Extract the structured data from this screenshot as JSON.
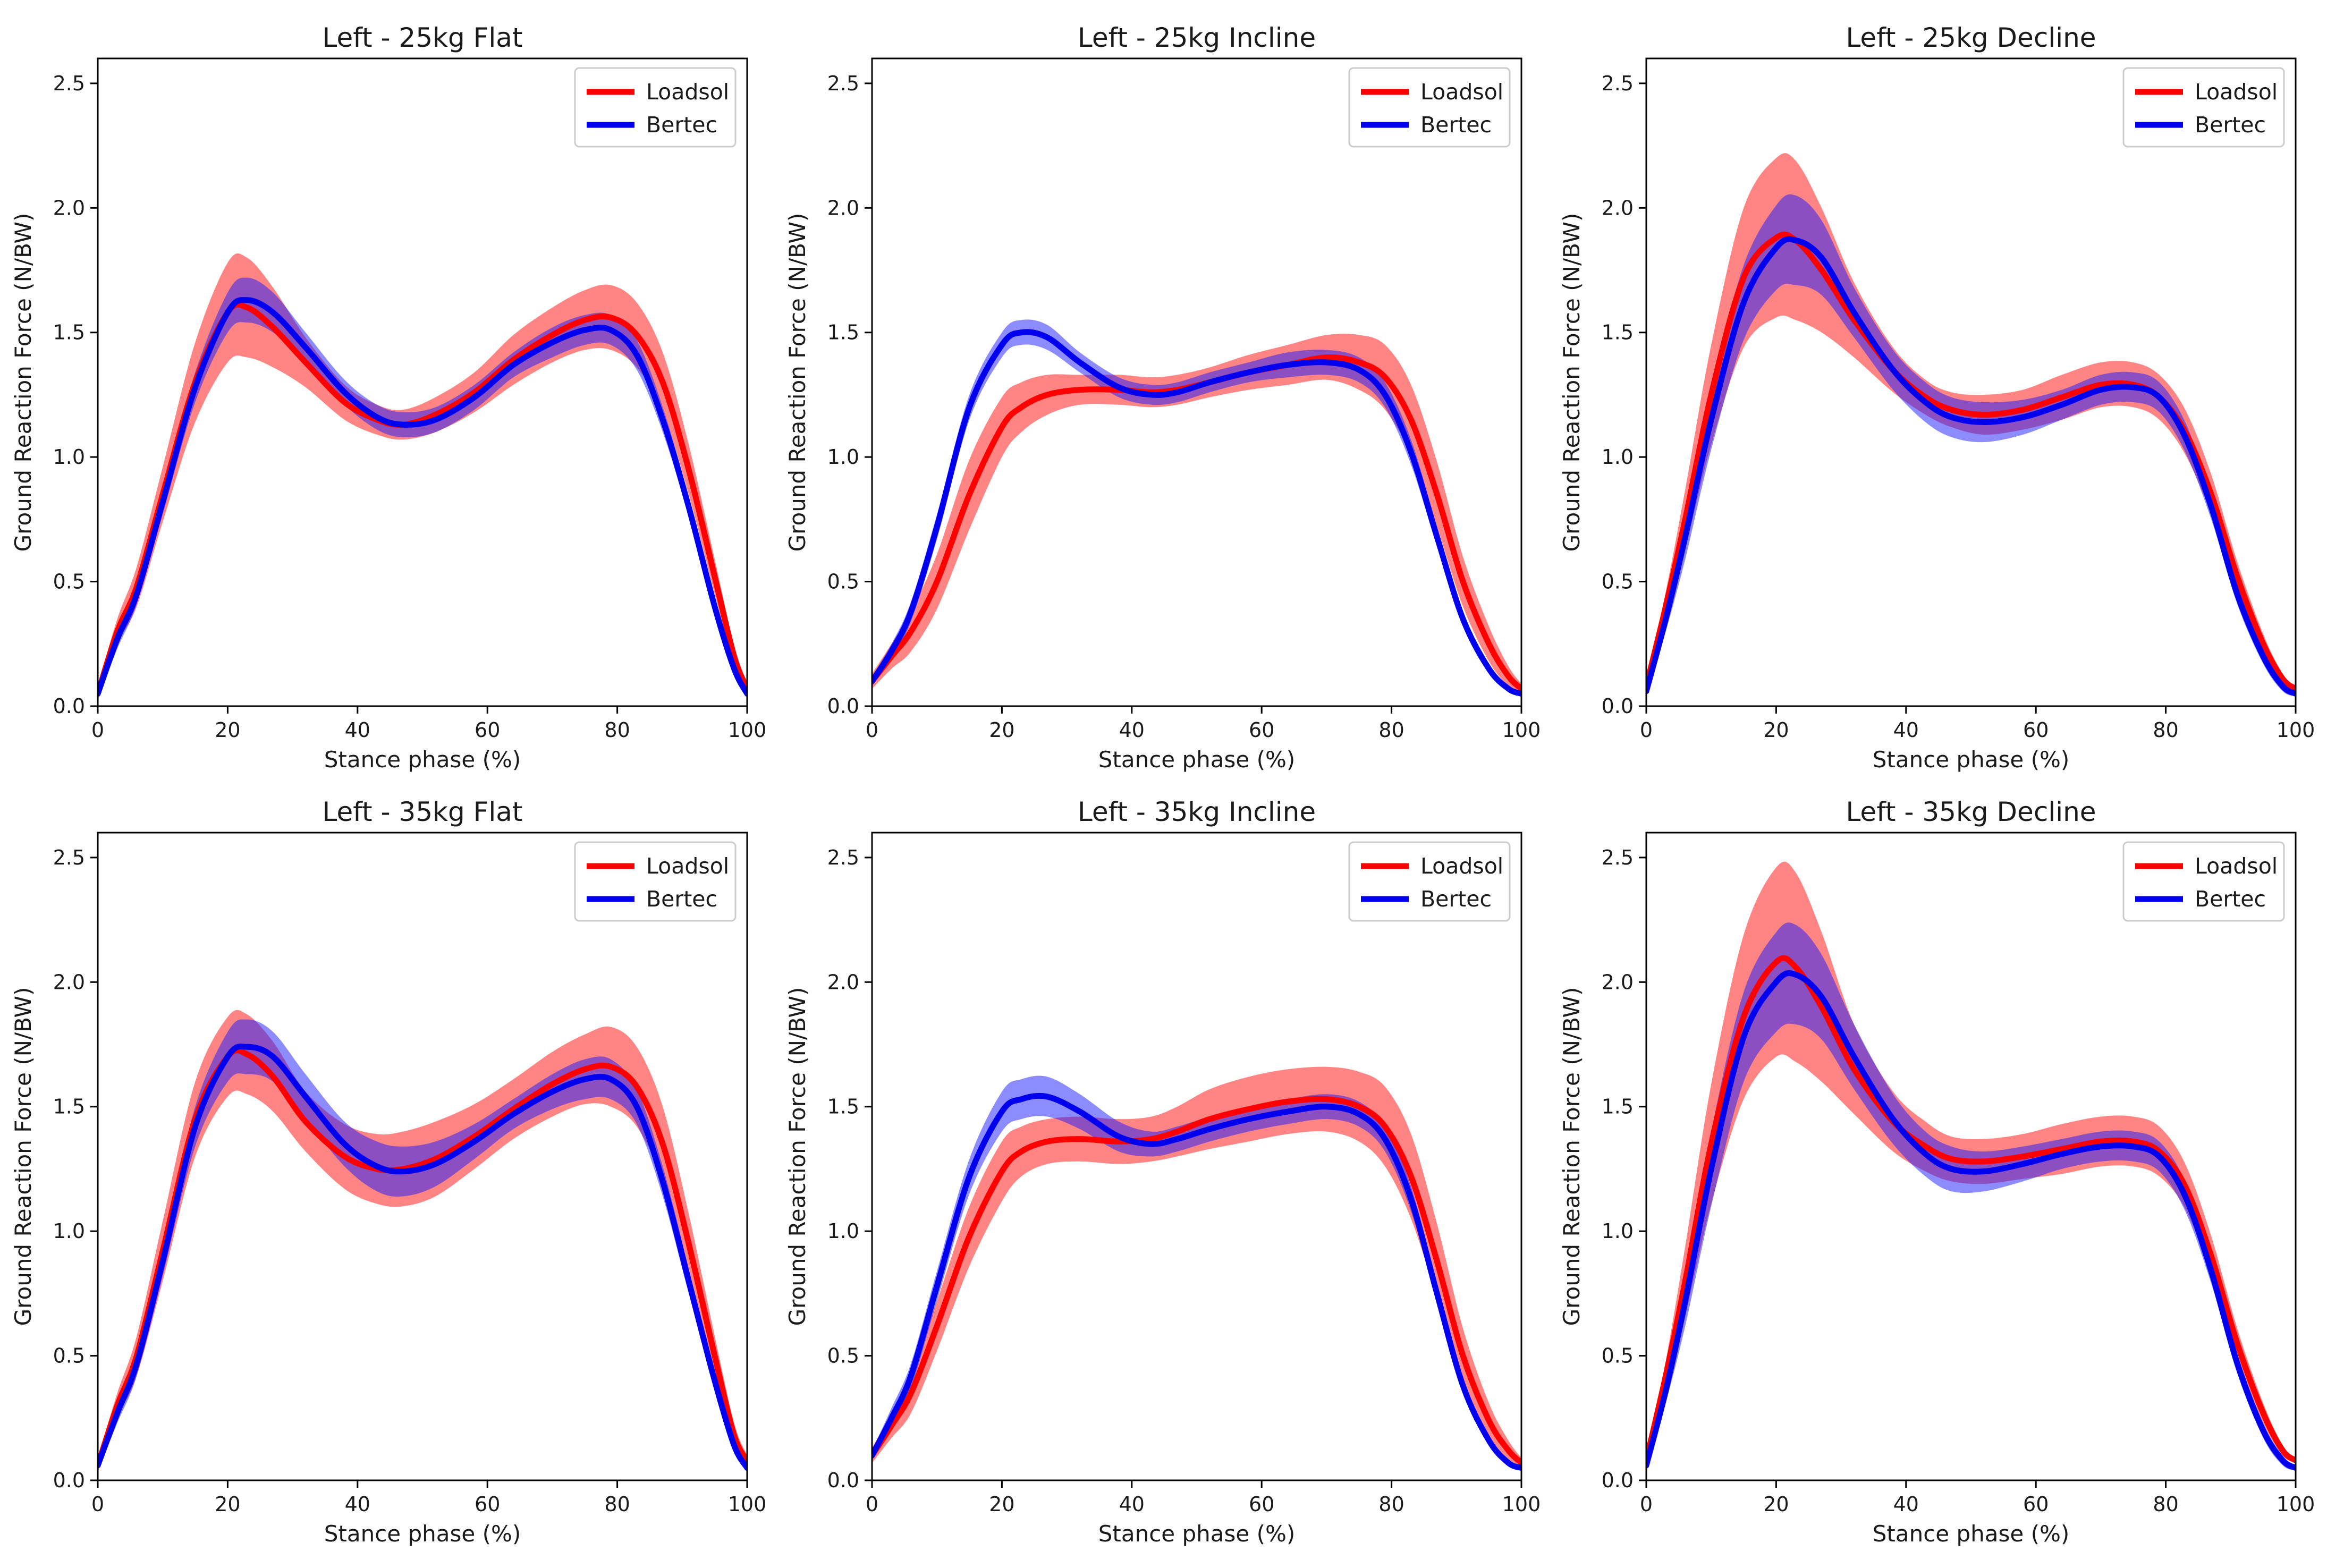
{
  "colors": {
    "loadsol": "#ff0000",
    "loadsol_band": "#ff0000",
    "bertec": "#0000ee",
    "bertec_band": "#1a1aff",
    "axis": "#000000",
    "legend_border": "#cccccc"
  },
  "chart_data": [
    {
      "type": "line",
      "title": "Left - 25kg Flat",
      "xlabel": "Stance phase (%)",
      "ylabel": "Ground Reaction Force (N/BW)",
      "xlim": [
        0,
        100
      ],
      "ylim": [
        0,
        2.6
      ],
      "xticks": [
        0,
        20,
        40,
        60,
        80,
        100
      ],
      "yticks": [
        0.0,
        0.5,
        1.0,
        1.5,
        2.0,
        2.5
      ],
      "xtick_labels": [
        "0",
        "20",
        "40",
        "60",
        "80",
        "100"
      ],
      "ytick_labels": [
        "0.0",
        "0.5",
        "1.0",
        "1.5",
        "2.0",
        "2.5"
      ],
      "legend": "top-right",
      "x": [
        0,
        3,
        6,
        10,
        15,
        20,
        23,
        27,
        32,
        38,
        43,
        47,
        52,
        58,
        64,
        70,
        75,
        79,
        83,
        87,
        91,
        95,
        98,
        100
      ],
      "series": [
        {
          "name": "Loadsol",
          "mean": [
            0.05,
            0.3,
            0.48,
            0.85,
            1.3,
            1.58,
            1.6,
            1.52,
            1.38,
            1.22,
            1.15,
            1.13,
            1.17,
            1.26,
            1.39,
            1.49,
            1.55,
            1.56,
            1.49,
            1.3,
            0.95,
            0.52,
            0.2,
            0.07
          ],
          "sd": [
            0.03,
            0.05,
            0.08,
            0.11,
            0.16,
            0.2,
            0.2,
            0.16,
            0.1,
            0.07,
            0.06,
            0.06,
            0.07,
            0.08,
            0.1,
            0.11,
            0.12,
            0.13,
            0.13,
            0.12,
            0.1,
            0.07,
            0.04,
            0.02
          ]
        },
        {
          "name": "Bertec",
          "mean": [
            0.05,
            0.27,
            0.45,
            0.82,
            1.28,
            1.58,
            1.63,
            1.58,
            1.44,
            1.26,
            1.16,
            1.13,
            1.15,
            1.24,
            1.37,
            1.46,
            1.51,
            1.51,
            1.41,
            1.15,
            0.8,
            0.4,
            0.15,
            0.05
          ],
          "sd": [
            0.02,
            0.04,
            0.04,
            0.05,
            0.06,
            0.08,
            0.09,
            0.08,
            0.06,
            0.05,
            0.05,
            0.05,
            0.05,
            0.05,
            0.05,
            0.06,
            0.06,
            0.06,
            0.06,
            0.05,
            0.04,
            0.03,
            0.02,
            0.01
          ]
        }
      ]
    },
    {
      "type": "line",
      "title": "Left - 25kg Incline",
      "xlabel": "Stance phase (%)",
      "ylabel": "Ground Reaction Force (N/BW)",
      "xlim": [
        0,
        100
      ],
      "ylim": [
        0,
        2.6
      ],
      "xticks": [
        0,
        20,
        40,
        60,
        80,
        100
      ],
      "yticks": [
        0.0,
        0.5,
        1.0,
        1.5,
        2.0,
        2.5
      ],
      "xtick_labels": [
        "0",
        "20",
        "40",
        "60",
        "80",
        "100"
      ],
      "ytick_labels": [
        "0.0",
        "0.5",
        "1.0",
        "1.5",
        "2.0",
        "2.5"
      ],
      "legend": "top-right",
      "x": [
        0,
        3,
        6,
        10,
        15,
        20,
        23,
        27,
        32,
        38,
        43,
        47,
        52,
        58,
        64,
        70,
        75,
        79,
        83,
        87,
        91,
        95,
        98,
        100
      ],
      "series": [
        {
          "name": "Loadsol",
          "mean": [
            0.1,
            0.2,
            0.3,
            0.5,
            0.85,
            1.12,
            1.2,
            1.25,
            1.27,
            1.27,
            1.26,
            1.27,
            1.3,
            1.34,
            1.37,
            1.4,
            1.38,
            1.32,
            1.15,
            0.85,
            0.5,
            0.25,
            0.12,
            0.07
          ],
          "sd": [
            0.03,
            0.05,
            0.08,
            0.11,
            0.14,
            0.12,
            0.1,
            0.08,
            0.06,
            0.06,
            0.06,
            0.06,
            0.06,
            0.07,
            0.08,
            0.09,
            0.11,
            0.13,
            0.14,
            0.13,
            0.1,
            0.07,
            0.04,
            0.02
          ]
        },
        {
          "name": "Bertec",
          "mean": [
            0.1,
            0.22,
            0.38,
            0.72,
            1.2,
            1.45,
            1.5,
            1.48,
            1.38,
            1.28,
            1.25,
            1.26,
            1.3,
            1.34,
            1.37,
            1.38,
            1.35,
            1.25,
            1.02,
            0.68,
            0.35,
            0.15,
            0.07,
            0.05
          ],
          "sd": [
            0.02,
            0.03,
            0.04,
            0.05,
            0.05,
            0.05,
            0.05,
            0.05,
            0.04,
            0.04,
            0.04,
            0.04,
            0.04,
            0.04,
            0.05,
            0.05,
            0.05,
            0.05,
            0.05,
            0.04,
            0.03,
            0.02,
            0.01,
            0.01
          ]
        }
      ]
    },
    {
      "type": "line",
      "title": "Left - 25kg Decline",
      "xlabel": "Stance phase (%)",
      "ylabel": "Ground Reaction Force (N/BW)",
      "xlim": [
        0,
        100
      ],
      "ylim": [
        0,
        2.6
      ],
      "xticks": [
        0,
        20,
        40,
        60,
        80,
        100
      ],
      "yticks": [
        0.0,
        0.5,
        1.0,
        1.5,
        2.0,
        2.5
      ],
      "xtick_labels": [
        "0",
        "20",
        "40",
        "60",
        "80",
        "100"
      ],
      "ytick_labels": [
        "0.0",
        "0.5",
        "1.0",
        "1.5",
        "2.0",
        "2.5"
      ],
      "legend": "top-right",
      "x": [
        0,
        3,
        6,
        10,
        15,
        20,
        23,
        27,
        32,
        38,
        43,
        47,
        52,
        58,
        64,
        70,
        75,
        79,
        83,
        87,
        91,
        95,
        98,
        100
      ],
      "series": [
        {
          "name": "Loadsol",
          "mean": [
            0.08,
            0.4,
            0.75,
            1.25,
            1.72,
            1.88,
            1.87,
            1.75,
            1.55,
            1.35,
            1.24,
            1.19,
            1.17,
            1.19,
            1.24,
            1.29,
            1.29,
            1.24,
            1.1,
            0.85,
            0.52,
            0.25,
            0.11,
            0.07
          ],
          "sd": [
            0.03,
            0.06,
            0.12,
            0.2,
            0.28,
            0.32,
            0.32,
            0.25,
            0.15,
            0.09,
            0.07,
            0.07,
            0.08,
            0.08,
            0.09,
            0.09,
            0.09,
            0.09,
            0.09,
            0.08,
            0.06,
            0.04,
            0.02,
            0.01
          ]
        },
        {
          "name": "Bertec",
          "mean": [
            0.06,
            0.35,
            0.68,
            1.15,
            1.62,
            1.84,
            1.87,
            1.8,
            1.58,
            1.35,
            1.22,
            1.16,
            1.14,
            1.16,
            1.21,
            1.27,
            1.28,
            1.24,
            1.08,
            0.8,
            0.45,
            0.2,
            0.08,
            0.05
          ],
          "sd": [
            0.02,
            0.05,
            0.09,
            0.12,
            0.15,
            0.17,
            0.18,
            0.15,
            0.1,
            0.08,
            0.08,
            0.08,
            0.08,
            0.07,
            0.06,
            0.06,
            0.06,
            0.06,
            0.06,
            0.05,
            0.04,
            0.03,
            0.02,
            0.01
          ]
        }
      ]
    },
    {
      "type": "line",
      "title": "Left - 35kg Flat",
      "xlabel": "Stance phase (%)",
      "ylabel": "Ground Reaction Force (N/BW)",
      "xlim": [
        0,
        100
      ],
      "ylim": [
        0,
        2.6
      ],
      "xticks": [
        0,
        20,
        40,
        60,
        80,
        100
      ],
      "yticks": [
        0.0,
        0.5,
        1.0,
        1.5,
        2.0,
        2.5
      ],
      "xtick_labels": [
        "0",
        "20",
        "40",
        "60",
        "80",
        "100"
      ],
      "ytick_labels": [
        "0.0",
        "0.5",
        "1.0",
        "1.5",
        "2.0",
        "2.5"
      ],
      "legend": "top-right",
      "x": [
        0,
        3,
        6,
        10,
        15,
        20,
        23,
        27,
        32,
        38,
        43,
        47,
        52,
        58,
        64,
        70,
        75,
        79,
        83,
        87,
        91,
        95,
        98,
        100
      ],
      "series": [
        {
          "name": "Loadsol",
          "mean": [
            0.06,
            0.3,
            0.5,
            0.92,
            1.45,
            1.7,
            1.71,
            1.62,
            1.44,
            1.3,
            1.25,
            1.25,
            1.29,
            1.38,
            1.49,
            1.59,
            1.65,
            1.66,
            1.58,
            1.35,
            0.95,
            0.5,
            0.18,
            0.08
          ],
          "sd": [
            0.03,
            0.05,
            0.08,
            0.12,
            0.15,
            0.16,
            0.16,
            0.14,
            0.12,
            0.13,
            0.14,
            0.15,
            0.15,
            0.13,
            0.12,
            0.13,
            0.14,
            0.16,
            0.16,
            0.15,
            0.12,
            0.08,
            0.05,
            0.02
          ]
        },
        {
          "name": "Bertec",
          "mean": [
            0.06,
            0.27,
            0.47,
            0.88,
            1.42,
            1.7,
            1.74,
            1.7,
            1.54,
            1.35,
            1.26,
            1.24,
            1.27,
            1.36,
            1.47,
            1.56,
            1.61,
            1.61,
            1.5,
            1.2,
            0.8,
            0.4,
            0.14,
            0.05
          ],
          "sd": [
            0.02,
            0.04,
            0.05,
            0.06,
            0.08,
            0.1,
            0.11,
            0.1,
            0.09,
            0.09,
            0.1,
            0.1,
            0.09,
            0.07,
            0.06,
            0.07,
            0.08,
            0.08,
            0.07,
            0.06,
            0.05,
            0.03,
            0.02,
            0.01
          ]
        }
      ]
    },
    {
      "type": "line",
      "title": "Left - 35kg Incline",
      "xlabel": "Stance phase (%)",
      "ylabel": "Ground Reaction Force (N/BW)",
      "xlim": [
        0,
        100
      ],
      "ylim": [
        0,
        2.6
      ],
      "xticks": [
        0,
        20,
        40,
        60,
        80,
        100
      ],
      "yticks": [
        0.0,
        0.5,
        1.0,
        1.5,
        2.0,
        2.5
      ],
      "xtick_labels": [
        "0",
        "20",
        "40",
        "60",
        "80",
        "100"
      ],
      "ytick_labels": [
        "0.0",
        "0.5",
        "1.0",
        "1.5",
        "2.0",
        "2.5"
      ],
      "legend": "top-right",
      "x": [
        0,
        3,
        6,
        10,
        15,
        20,
        23,
        27,
        32,
        38,
        43,
        47,
        52,
        58,
        64,
        70,
        75,
        79,
        83,
        87,
        91,
        95,
        98,
        100
      ],
      "series": [
        {
          "name": "Loadsol",
          "mean": [
            0.1,
            0.22,
            0.35,
            0.62,
            0.98,
            1.24,
            1.32,
            1.36,
            1.37,
            1.36,
            1.37,
            1.4,
            1.45,
            1.49,
            1.52,
            1.53,
            1.5,
            1.42,
            1.22,
            0.88,
            0.5,
            0.24,
            0.12,
            0.07
          ],
          "sd": [
            0.03,
            0.05,
            0.08,
            0.1,
            0.12,
            0.12,
            0.1,
            0.09,
            0.09,
            0.09,
            0.09,
            0.1,
            0.12,
            0.13,
            0.13,
            0.13,
            0.14,
            0.16,
            0.17,
            0.15,
            0.11,
            0.07,
            0.04,
            0.02
          ]
        },
        {
          "name": "Bertec",
          "mean": [
            0.1,
            0.25,
            0.42,
            0.78,
            1.22,
            1.48,
            1.53,
            1.54,
            1.48,
            1.38,
            1.35,
            1.37,
            1.41,
            1.45,
            1.48,
            1.5,
            1.47,
            1.37,
            1.13,
            0.75,
            0.38,
            0.16,
            0.07,
            0.05
          ],
          "sd": [
            0.02,
            0.04,
            0.05,
            0.06,
            0.07,
            0.08,
            0.08,
            0.08,
            0.07,
            0.06,
            0.05,
            0.05,
            0.05,
            0.05,
            0.05,
            0.05,
            0.05,
            0.05,
            0.05,
            0.04,
            0.03,
            0.02,
            0.01,
            0.01
          ]
        }
      ]
    },
    {
      "type": "line",
      "title": "Left - 35kg Decline",
      "xlabel": "Stance phase (%)",
      "ylabel": "Ground Reaction Force (N/BW)",
      "xlim": [
        0,
        100
      ],
      "ylim": [
        0,
        2.6
      ],
      "xticks": [
        0,
        20,
        40,
        60,
        80,
        100
      ],
      "yticks": [
        0.0,
        0.5,
        1.0,
        1.5,
        2.0,
        2.5
      ],
      "xtick_labels": [
        "0",
        "20",
        "40",
        "60",
        "80",
        "100"
      ],
      "ytick_labels": [
        "0.0",
        "0.5",
        "1.0",
        "1.5",
        "2.0",
        "2.5"
      ],
      "legend": "top-right",
      "x": [
        0,
        3,
        6,
        10,
        15,
        20,
        23,
        27,
        32,
        38,
        43,
        47,
        52,
        58,
        64,
        70,
        75,
        79,
        83,
        87,
        91,
        95,
        98,
        100
      ],
      "series": [
        {
          "name": "Loadsol",
          "mean": [
            0.08,
            0.42,
            0.8,
            1.35,
            1.86,
            2.08,
            2.06,
            1.9,
            1.65,
            1.44,
            1.34,
            1.29,
            1.28,
            1.3,
            1.33,
            1.36,
            1.36,
            1.32,
            1.18,
            0.9,
            0.55,
            0.27,
            0.12,
            0.08
          ],
          "sd": [
            0.03,
            0.06,
            0.14,
            0.24,
            0.33,
            0.38,
            0.38,
            0.3,
            0.18,
            0.12,
            0.1,
            0.09,
            0.09,
            0.09,
            0.1,
            0.1,
            0.1,
            0.1,
            0.09,
            0.08,
            0.06,
            0.04,
            0.02,
            0.01
          ]
        },
        {
          "name": "Bertec",
          "mean": [
            0.06,
            0.36,
            0.72,
            1.25,
            1.78,
            2.0,
            2.03,
            1.94,
            1.7,
            1.45,
            1.31,
            1.25,
            1.24,
            1.27,
            1.31,
            1.34,
            1.34,
            1.3,
            1.14,
            0.84,
            0.47,
            0.2,
            0.08,
            0.05
          ],
          "sd": [
            0.02,
            0.05,
            0.1,
            0.15,
            0.18,
            0.2,
            0.2,
            0.17,
            0.13,
            0.1,
            0.09,
            0.09,
            0.08,
            0.07,
            0.06,
            0.06,
            0.06,
            0.06,
            0.06,
            0.05,
            0.04,
            0.03,
            0.02,
            0.01
          ]
        }
      ]
    }
  ]
}
